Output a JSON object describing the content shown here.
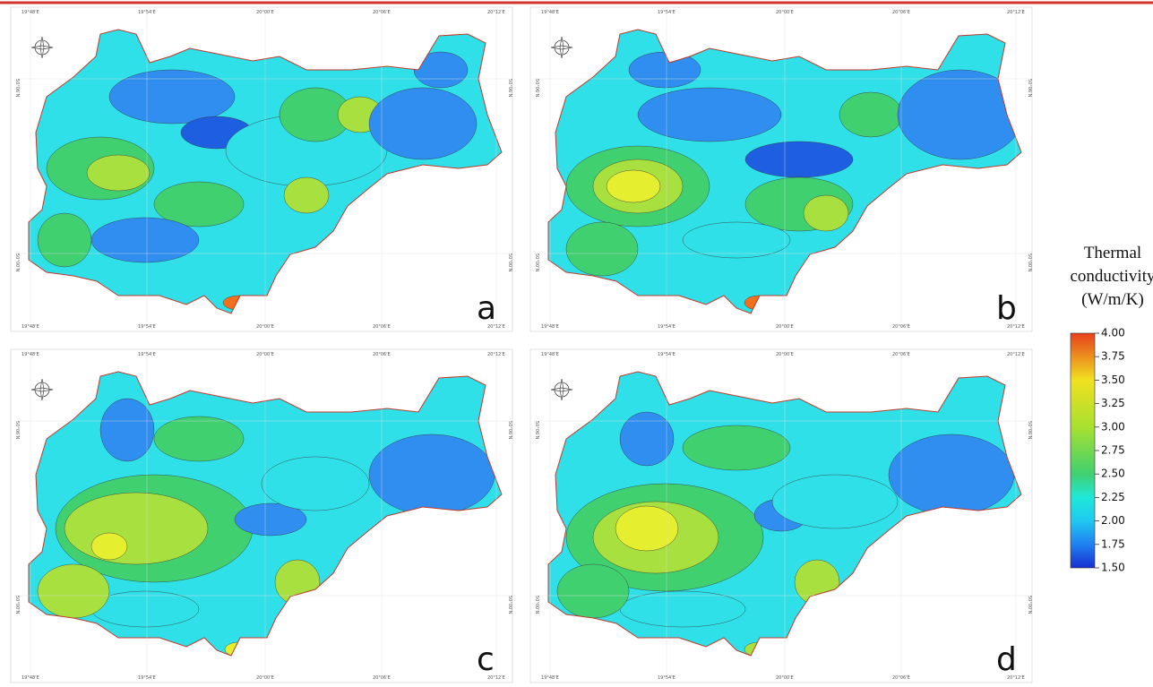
{
  "panels": [
    {
      "label": "a"
    },
    {
      "label": "b"
    },
    {
      "label": "c"
    },
    {
      "label": "d"
    }
  ],
  "graticule": {
    "lon": [
      "19°48'E",
      "19°54'E",
      "20°00'E",
      "20°06'E",
      "20°12'E"
    ],
    "lat": [
      "50°06'N",
      "50°00'N"
    ]
  },
  "legend": {
    "title": [
      "Thermal",
      "conductivity",
      "(W/m/K)"
    ],
    "range": [
      1.5,
      4
    ],
    "ticks": [
      {
        "value": 4,
        "label": "4.00"
      },
      {
        "value": 3.75,
        "label": "3.75"
      },
      {
        "value": 3.5,
        "label": "3.50"
      },
      {
        "value": 3.25,
        "label": "3.25"
      },
      {
        "value": 3,
        "label": "3.00"
      },
      {
        "value": 2.75,
        "label": "2.75"
      },
      {
        "value": 2.5,
        "label": "2.50"
      },
      {
        "value": 2.25,
        "label": "2.25"
      },
      {
        "value": 2,
        "label": "2.00"
      },
      {
        "value": 1.75,
        "label": "1.75"
      },
      {
        "value": 1.5,
        "label": "1.50"
      }
    ]
  }
}
